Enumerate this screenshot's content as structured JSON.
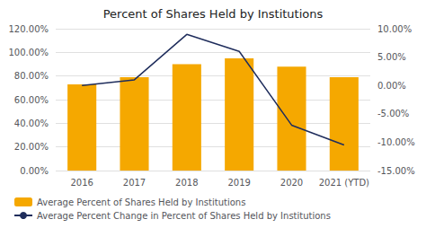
{
  "chart_data": {
    "type": "bar",
    "title": "Percent of Shares Held by Institutions",
    "categories": [
      "2016",
      "2017",
      "2018",
      "2019",
      "2020",
      "2021 (YTD)"
    ],
    "series": [
      {
        "name": "Average Percent of Shares Held by Institutions",
        "type": "bar",
        "color": "#F5A800",
        "values": [
          73.0,
          79.0,
          90.0,
          95.0,
          88.0,
          79.0
        ]
      },
      {
        "name": "Average Percent Change in Percent of Shares Held by Institutions",
        "type": "line",
        "color": "#1F2D5C",
        "axis": "y2",
        "values": [
          0.0,
          1.0,
          9.0,
          6.0,
          -7.0,
          -10.5
        ]
      }
    ],
    "ylim": [
      0,
      120
    ],
    "yticks": [
      {
        "value": 0,
        "label": "0.00%"
      },
      {
        "value": 20,
        "label": "20.00%"
      },
      {
        "value": 40,
        "label": "40.00%"
      },
      {
        "value": 60,
        "label": "60.00%"
      },
      {
        "value": 80,
        "label": "80.00%"
      },
      {
        "value": 100,
        "label": "100.00%"
      },
      {
        "value": 120,
        "label": "120.00%"
      }
    ],
    "y2lim": [
      -15,
      10
    ],
    "y2ticks": [
      {
        "value": -15,
        "label": "-15.00%"
      },
      {
        "value": -10,
        "label": "-10.00%"
      },
      {
        "value": -5,
        "label": "-5.00%"
      },
      {
        "value": 0,
        "label": "0.00%"
      },
      {
        "value": 5,
        "label": "5.00%"
      },
      {
        "value": 10,
        "label": "10.00%"
      }
    ],
    "grid": true,
    "legend": "lower left"
  }
}
